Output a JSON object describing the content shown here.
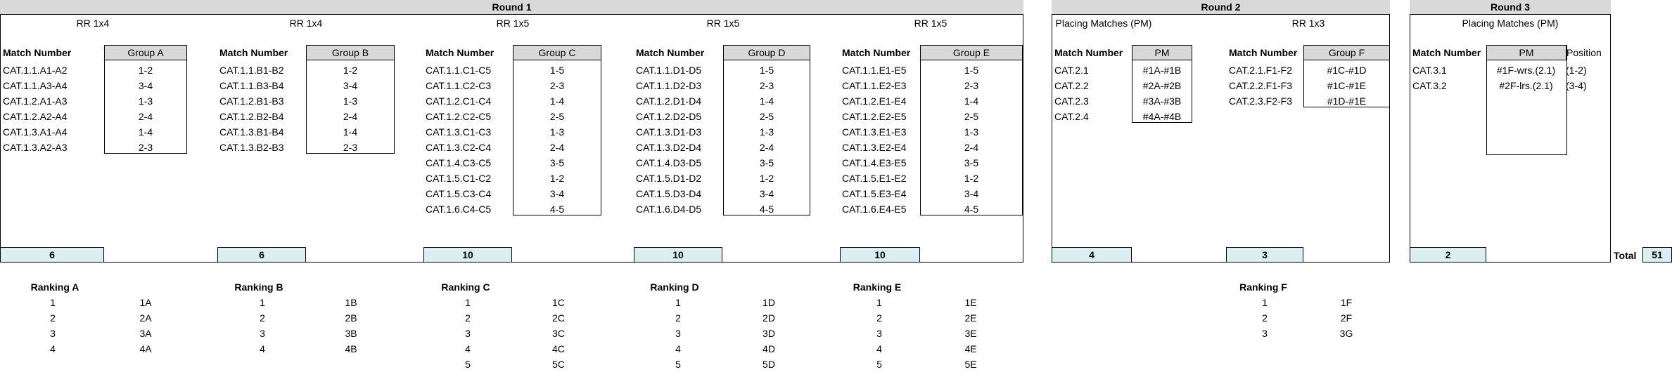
{
  "rounds": [
    {
      "title": "Round 1",
      "subs": [
        "RR 1x4",
        "RR 1x4",
        "RR 1x5",
        "RR 1x5",
        "RR 1x5"
      ]
    },
    {
      "title": "Round 2",
      "subs": [
        "Placing Matches (PM)",
        "RR 1x3"
      ]
    },
    {
      "title": "Round 3",
      "subs": [
        "Placing Matches (PM)"
      ]
    }
  ],
  "column_header": "Match Number",
  "groups": [
    {
      "name": "Group A",
      "matches": [
        "CAT.1.1.A1-A2",
        "CAT.1.1.A3-A4",
        "CAT.1.2.A1-A3",
        "CAT.1.2.A2-A4",
        "CAT.1.3.A1-A4",
        "CAT.1.3.A2-A3"
      ],
      "pairs": [
        "1-2",
        "3-4",
        "1-3",
        "2-4",
        "1-4",
        "2-3"
      ],
      "total": "6"
    },
    {
      "name": "Group B",
      "matches": [
        "CAT.1.1.B1-B2",
        "CAT.1.1.B3-B4",
        "CAT.1.2.B1-B3",
        "CAT.1.2.B2-B4",
        "CAT.1.3.B1-B4",
        "CAT.1.3.B2-B3"
      ],
      "pairs": [
        "1-2",
        "3-4",
        "1-3",
        "2-4",
        "1-4",
        "2-3"
      ],
      "total": "6"
    },
    {
      "name": "Group C",
      "matches": [
        "CAT.1.1.C1-C5",
        "CAT.1.1.C2-C3",
        "CAT.1.2.C1-C4",
        "CAT.1.2.C2-C5",
        "CAT.1.3.C1-C3",
        "CAT.1.3.C2-C4",
        "CAT.1.4.C3-C5",
        "CAT.1.5.C1-C2",
        "CAT.1.5.C3-C4",
        "CAT.1.6.C4-C5"
      ],
      "pairs": [
        "1-5",
        "2-3",
        "1-4",
        "2-5",
        "1-3",
        "2-4",
        "3-5",
        "1-2",
        "3-4",
        "4-5"
      ],
      "total": "10"
    },
    {
      "name": "Group D",
      "matches": [
        "CAT.1.1.D1-D5",
        "CAT.1.1.D2-D3",
        "CAT.1.2.D1-D4",
        "CAT.1.2.D2-D5",
        "CAT.1.3.D1-D3",
        "CAT.1.3.D2-D4",
        "CAT.1.4.D3-D5",
        "CAT.1.5.D1-D2",
        "CAT.1.5.D3-D4",
        "CAT.1.6.D4-D5"
      ],
      "pairs": [
        "1-5",
        "2-3",
        "1-4",
        "2-5",
        "1-3",
        "2-4",
        "3-5",
        "1-2",
        "3-4",
        "4-5"
      ],
      "total": "10"
    },
    {
      "name": "Group E",
      "matches": [
        "CAT.1.1.E1-E5",
        "CAT.1.1.E2-E3",
        "CAT.1.2.E1-E4",
        "CAT.1.2.E2-E5",
        "CAT.1.3.E1-E3",
        "CAT.1.3.E2-E4",
        "CAT.1.4.E3-E5",
        "CAT.1.5.E1-E2",
        "CAT.1.5.E3-E4",
        "CAT.1.6.E4-E5"
      ],
      "pairs": [
        "1-5",
        "2-3",
        "1-4",
        "2-5",
        "1-3",
        "2-4",
        "3-5",
        "1-2",
        "3-4",
        "4-5"
      ],
      "total": "10"
    },
    {
      "name": "PM",
      "matches": [
        "CAT.2.1",
        "CAT.2.2",
        "CAT.2.3",
        "CAT.2.4"
      ],
      "pairs": [
        "#1A-#1B",
        "#2A-#2B",
        "#3A-#3B",
        "#4A-#4B"
      ],
      "total": "4"
    },
    {
      "name": "Group F",
      "matches": [
        "CAT.2.1.F1-F2",
        "CAT.2.2.F1-F3",
        "CAT.2.3.F2-F3"
      ],
      "pairs": [
        "#1C-#1D",
        "#1C-#1E",
        "#1D-#1E"
      ],
      "total": "3"
    },
    {
      "name": "PM",
      "position_header": "Position",
      "matches": [
        "CAT.3.1",
        "CAT.3.2"
      ],
      "pairs": [
        "#1F-wrs.(2.1)",
        "#2F-lrs.(2.1)"
      ],
      "positions": [
        "(1-2)",
        "(3-4)"
      ],
      "total": "2"
    }
  ],
  "grand_total": {
    "label": "Total",
    "value": "51"
  },
  "rankings": [
    {
      "title": "Ranking A",
      "ranks": [
        "1",
        "2",
        "3",
        "4"
      ],
      "codes": [
        "1A",
        "2A",
        "3A",
        "4A"
      ]
    },
    {
      "title": "Ranking B",
      "ranks": [
        "1",
        "2",
        "3",
        "4"
      ],
      "codes": [
        "1B",
        "2B",
        "3B",
        "4B"
      ]
    },
    {
      "title": "Ranking C",
      "ranks": [
        "1",
        "2",
        "3",
        "4",
        "5"
      ],
      "codes": [
        "1C",
        "2C",
        "3C",
        "4C",
        "5C"
      ]
    },
    {
      "title": "Ranking D",
      "ranks": [
        "1",
        "2",
        "3",
        "4",
        "5"
      ],
      "codes": [
        "1D",
        "2D",
        "3D",
        "4D",
        "5D"
      ]
    },
    {
      "title": "Ranking E",
      "ranks": [
        "1",
        "2",
        "3",
        "4",
        "5"
      ],
      "codes": [
        "1E",
        "2E",
        "3E",
        "4E",
        "5E"
      ]
    },
    {
      "title": "Ranking F",
      "ranks": [
        "1",
        "2",
        "3"
      ],
      "codes": [
        "1F",
        "2F",
        "3G"
      ]
    }
  ]
}
